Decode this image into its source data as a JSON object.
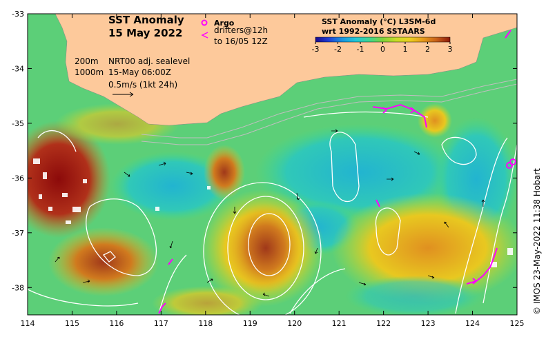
{
  "title": {
    "line1": "SST Anomaly",
    "line2": "15 May 2022"
  },
  "legend": {
    "argo_label": "Argo",
    "drifters_label": "drifters@12h",
    "drifters_to": "to 16/05 12Z"
  },
  "notes": {
    "depth_200": "200m",
    "depth_1000": "1000m",
    "sealevel": "NRT00 adj. sealevel",
    "time": "15-May 06:00Z",
    "scale": "0.5m/s (1kt 24h)"
  },
  "colorbar": {
    "title1": "SST Anomaly (°C) L3SM-6d",
    "title2": "wrt 1992-2016 SSTAARS",
    "ticks": [
      "-3",
      "-2",
      "-1",
      "0",
      "1",
      "2",
      "3"
    ],
    "range": [
      -3,
      3
    ],
    "colors": [
      "#1a0a8c",
      "#1f3fd6",
      "#1a96e0",
      "#22c8d8",
      "#3fd690",
      "#7ed43a",
      "#c8dc28",
      "#ecd020",
      "#e89a1a",
      "#c8601a",
      "#8c1a0a"
    ]
  },
  "axes": {
    "x_ticks": [
      "114",
      "115",
      "116",
      "117",
      "118",
      "119",
      "120",
      "121",
      "122",
      "123",
      "124",
      "125"
    ],
    "y_ticks": [
      "-33",
      "-34",
      "-35",
      "-36",
      "-37",
      "-38"
    ],
    "lon_range": [
      114,
      125
    ],
    "lat_range": [
      -38.5,
      -33
    ]
  },
  "credit": "© IMOS 23-May-2022 11:38 Hobart",
  "colors": {
    "land": "#fdc99b",
    "argo": "#ff00ff",
    "drifter": "#ff00ff",
    "contour": "#ffffff"
  }
}
